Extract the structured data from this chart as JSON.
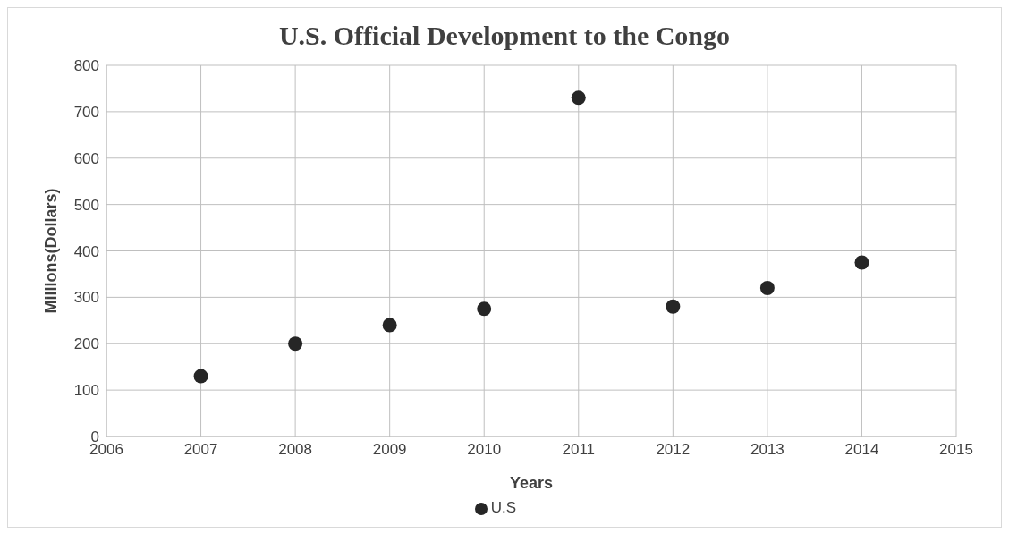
{
  "chart_data": {
    "type": "scatter",
    "title": "U.S.  Official Development to the Congo",
    "xlabel": "Years",
    "ylabel": "Millions(Dollars)",
    "x": [
      2007,
      2008,
      2009,
      2010,
      2011,
      2012,
      2013,
      2014
    ],
    "series": [
      {
        "name": "U.S",
        "color": "#262626",
        "values": [
          130,
          200,
          240,
          275,
          730,
          280,
          320,
          375
        ]
      }
    ],
    "xlim": [
      2006,
      2015
    ],
    "xticks": [
      2006,
      2007,
      2008,
      2009,
      2010,
      2011,
      2012,
      2013,
      2014,
      2015
    ],
    "ylim": [
      0,
      800
    ],
    "yticks": [
      0,
      100,
      200,
      300,
      400,
      500,
      600,
      700,
      800
    ],
    "grid": true,
    "legend": "bottom",
    "marker": "circle"
  }
}
